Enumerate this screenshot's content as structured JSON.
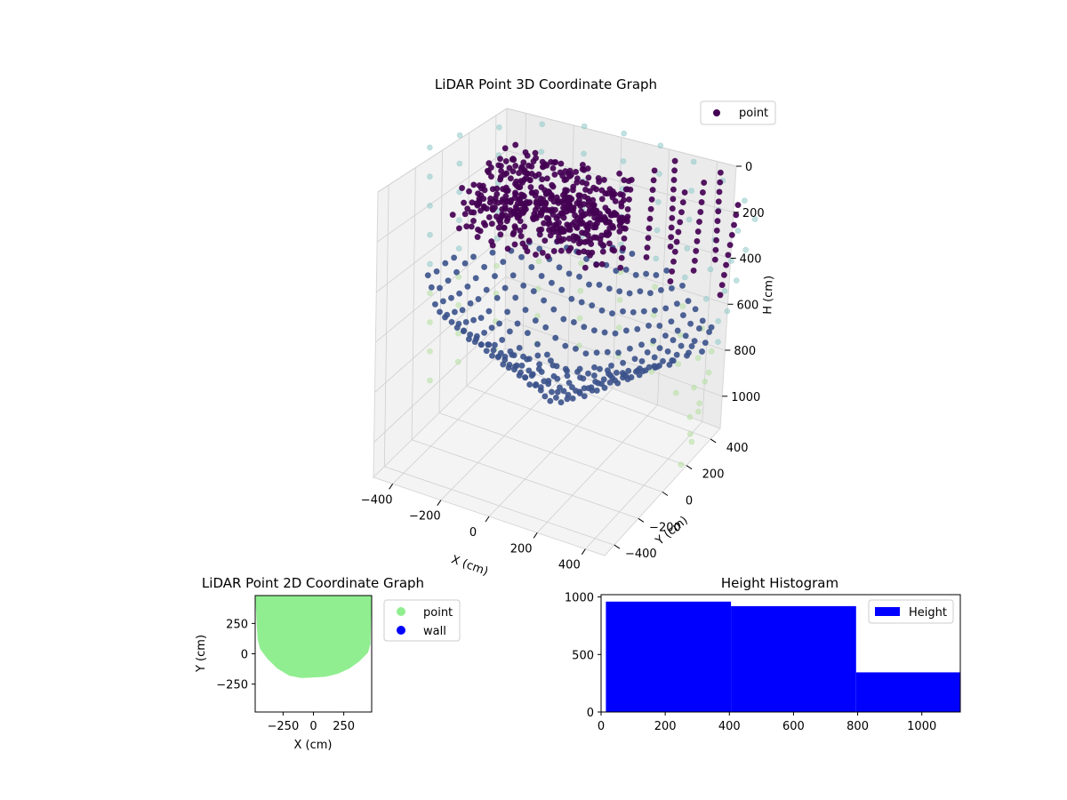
{
  "colors": {
    "wall_seen": "#3c4e8a",
    "floor_seen": "#3b528b",
    "top_seen": "#440154",
    "ring_top": "#8fc8c8",
    "ring_bottom": "#b5e0a0",
    "scatter2d_point": "#90ee90",
    "scatter2d_wall": "#0000ff",
    "hist_fill": "#0000ff",
    "legend_point_3d": "#440154"
  },
  "chart_data": [
    {
      "id": "lidar3d",
      "type": "scatter",
      "title": "LiDAR Point 3D Coordinate Graph",
      "xlabel": "X (cm)",
      "ylabel": "Y (cm)",
      "zlabel": "H (cm)",
      "xlim": [
        -480,
        480
      ],
      "ylim": [
        -480,
        480
      ],
      "zlim": [
        0,
        1140
      ],
      "z_inverted": true,
      "x_ticks": [
        -400,
        -200,
        0,
        200,
        400
      ],
      "x_tick_labels": [
        "−400",
        "−200",
        "0",
        "200",
        "400"
      ],
      "y_ticks": [
        -400,
        -200,
        0,
        200,
        400
      ],
      "y_tick_labels": [
        "−400",
        "−200",
        "0",
        "200",
        "400"
      ],
      "z_ticks": [
        0,
        200,
        400,
        600,
        800,
        1000
      ],
      "z_tick_labels": [
        "0",
        "200",
        "400",
        "600",
        "800",
        "1000"
      ],
      "grid": true,
      "colormap": "viridis",
      "legend": {
        "position": "top-right",
        "entries": [
          {
            "label": "point"
          }
        ]
      },
      "series": [
        {
          "name": "point",
          "structure": "ceiling strip",
          "x_range": [
            -420,
            80
          ],
          "y_range": [
            -60,
            420
          ],
          "h_range": [
            120,
            330
          ]
        },
        {
          "name": "point",
          "structure": "wall columns",
          "x_range": [
            100,
            480
          ],
          "y_range": [
            200,
            470
          ],
          "h_range": [
            40,
            420
          ]
        },
        {
          "name": "point",
          "structure": "floor bowl",
          "x_range": [
            -480,
            480
          ],
          "y_range": [
            -480,
            480
          ],
          "h_range": [
            480,
            940
          ]
        },
        {
          "name": "point",
          "structure": "outer ring",
          "radius": 520,
          "h_range": [
            0,
            1140
          ]
        }
      ]
    },
    {
      "id": "lidar2d",
      "type": "scatter",
      "title": "LiDAR Point 2D Coordinate Graph",
      "xlabel": "X (cm)",
      "ylabel": "Y (cm)",
      "xlim": [
        -480,
        480
      ],
      "ylim": [
        -480,
        480
      ],
      "x_ticks": [
        -250,
        0,
        250
      ],
      "x_tick_labels": [
        "−250",
        "0",
        "250"
      ],
      "y_ticks": [
        -250,
        0,
        250
      ],
      "y_tick_labels": [
        "−250",
        "0",
        "250"
      ],
      "legend": {
        "position": "right",
        "entries": [
          {
            "label": "point"
          },
          {
            "label": "wall"
          }
        ]
      },
      "series": [
        {
          "name": "point",
          "region": "filled half-disc",
          "boundary": [
            [
              -460,
              120
            ],
            [
              -440,
              40
            ],
            [
              -380,
              -40
            ],
            [
              -300,
              -120
            ],
            [
              -200,
              -180
            ],
            [
              -100,
              -200
            ],
            [
              0,
              -195
            ],
            [
              100,
              -190
            ],
            [
              200,
              -165
            ],
            [
              300,
              -120
            ],
            [
              380,
              -60
            ],
            [
              450,
              10
            ],
            [
              470,
              80
            ]
          ]
        },
        {
          "name": "wall",
          "points": []
        }
      ]
    },
    {
      "id": "hist",
      "type": "bar",
      "title": "Height Histogram",
      "xlim": [
        0,
        1120
      ],
      "ylim": [
        0,
        1020
      ],
      "x_ticks": [
        0,
        200,
        400,
        600,
        800,
        1000
      ],
      "x_tick_labels": [
        "0",
        "200",
        "400",
        "600",
        "800",
        "1000"
      ],
      "y_ticks": [
        0,
        500,
        1000
      ],
      "y_tick_labels": [
        "0",
        "500",
        "1000"
      ],
      "legend": {
        "position": "top-right",
        "entries": [
          {
            "label": "Height"
          }
        ]
      },
      "bins": [
        {
          "x0": 15,
          "x1": 405,
          "count": 960
        },
        {
          "x0": 405,
          "x1": 795,
          "count": 920
        },
        {
          "x0": 795,
          "x1": 1120,
          "count": 345
        }
      ]
    }
  ]
}
